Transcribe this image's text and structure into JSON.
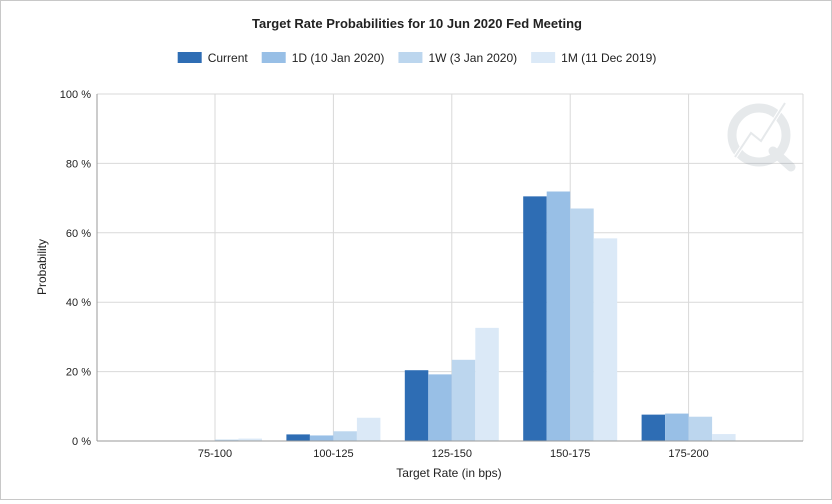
{
  "chart_data": {
    "type": "bar",
    "title": "Target Rate Probabilities for 10 Jun 2020 Fed Meeting",
    "xlabel": "Target Rate (in bps)",
    "ylabel": "Probability",
    "ylim": [
      0,
      100
    ],
    "yticks": [
      0,
      20,
      40,
      60,
      80,
      100
    ],
    "ytick_labels": [
      "0 %",
      "20 %",
      "40 %",
      "60 %",
      "80 %",
      "100 %"
    ],
    "categories": [
      "75-100",
      "100-125",
      "125-150",
      "150-175",
      "175-200"
    ],
    "grid": true,
    "legend_position": "top",
    "series": [
      {
        "name": "Current",
        "color": "#2e6db4",
        "values": [
          0.0,
          1.9,
          20.4,
          70.5,
          7.6
        ]
      },
      {
        "name": "1D (10 Jan 2020)",
        "color": "#98bfe6",
        "values": [
          0.0,
          1.6,
          19.2,
          71.9,
          7.9
        ]
      },
      {
        "name": "1W (3 Jan 2020)",
        "color": "#bcd6ee",
        "values": [
          0.4,
          2.8,
          23.4,
          67.0,
          7.0
        ]
      },
      {
        "name": "1M (11 Dec 2019)",
        "color": "#dbe9f7",
        "values": [
          0.7,
          6.7,
          32.6,
          58.4,
          2.0
        ]
      }
    ]
  }
}
